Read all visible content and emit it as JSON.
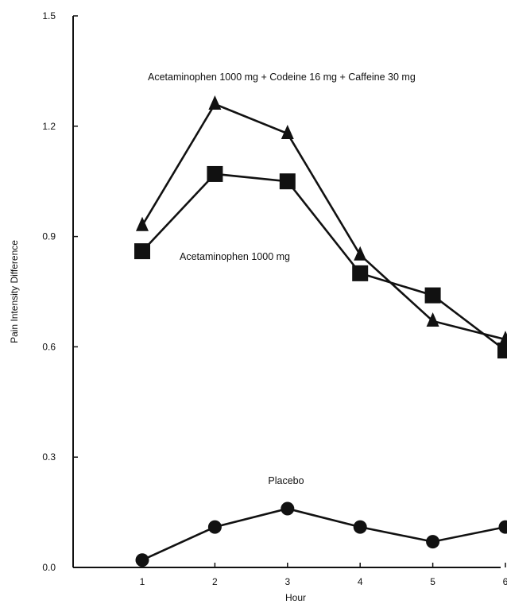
{
  "chart_data": {
    "type": "line",
    "title": "",
    "xlabel": "Hour",
    "ylabel": "Pain Intensity Difference",
    "x": [
      1,
      2,
      3,
      4,
      5,
      6
    ],
    "x_tick_labels": [
      "1",
      "2",
      "3",
      "4",
      "5",
      "6"
    ],
    "ylim": [
      0.0,
      1.5
    ],
    "y_tick_labels": [
      "0.0",
      "0.3",
      "0.6",
      "0.9",
      "1.2",
      "1.5"
    ],
    "grid": false,
    "series": [
      {
        "name": "Acetaminophen 1000 mg + Codeine 16 mg + Caffeine 30 mg",
        "marker": "triangle",
        "values": [
          0.93,
          1.26,
          1.18,
          0.85,
          0.67,
          0.62
        ]
      },
      {
        "name": "Acetaminophen 1000 mg",
        "marker": "square",
        "values": [
          0.86,
          1.07,
          1.05,
          0.8,
          0.74,
          0.59
        ]
      },
      {
        "name": "Placebo",
        "marker": "circle",
        "values": [
          0.02,
          0.11,
          0.16,
          0.11,
          0.07,
          0.11
        ]
      }
    ]
  }
}
